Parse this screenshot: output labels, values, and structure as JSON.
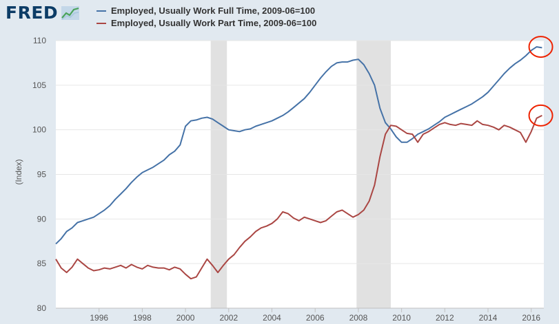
{
  "header": {
    "logo_text": "FRED",
    "logo_icon": "line-chart-icon"
  },
  "colors": {
    "background": "#e1e9f0",
    "plot_background": "#ffffff",
    "recession_shading": "#e1e1e1",
    "full_time_series": "#4572a7",
    "part_time_series": "#aa4643",
    "highlight_circle": "#ee2200"
  },
  "chart_data": {
    "type": "line",
    "title": "",
    "xlabel": "",
    "ylabel": "(Index)",
    "xlim": [
      1994.0,
      2016.583
    ],
    "ylim": [
      80,
      110
    ],
    "x_ticks": [
      "1996",
      "1998",
      "2000",
      "2002",
      "2004",
      "2006",
      "2008",
      "2010",
      "2012",
      "2014",
      "2016"
    ],
    "y_ticks": [
      "80",
      "85",
      "90",
      "95",
      "100",
      "105",
      "110"
    ],
    "grid": "horizontal",
    "legend_placement": "top",
    "recessions": [
      [
        2001.167,
        2001.917
      ],
      [
        2007.917,
        2009.5
      ]
    ],
    "annotations": [
      {
        "type": "circle",
        "x": 2016.25,
        "y": 109.3
      },
      {
        "type": "circle",
        "x": 2016.25,
        "y": 101.6
      }
    ],
    "series": [
      {
        "name": "Employed, Usually Work Full Time, 2009-06=100",
        "points": [
          [
            1994.0,
            87.2
          ],
          [
            1994.25,
            87.8
          ],
          [
            1994.5,
            88.6
          ],
          [
            1994.75,
            89.0
          ],
          [
            1995.0,
            89.6
          ],
          [
            1995.25,
            89.8
          ],
          [
            1995.5,
            90.0
          ],
          [
            1995.75,
            90.2
          ],
          [
            1996.0,
            90.6
          ],
          [
            1996.25,
            91.0
          ],
          [
            1996.5,
            91.5
          ],
          [
            1996.75,
            92.2
          ],
          [
            1997.0,
            92.8
          ],
          [
            1997.25,
            93.4
          ],
          [
            1997.5,
            94.1
          ],
          [
            1997.75,
            94.7
          ],
          [
            1998.0,
            95.2
          ],
          [
            1998.25,
            95.5
          ],
          [
            1998.5,
            95.8
          ],
          [
            1998.75,
            96.2
          ],
          [
            1999.0,
            96.6
          ],
          [
            1999.25,
            97.2
          ],
          [
            1999.5,
            97.6
          ],
          [
            1999.75,
            98.3
          ],
          [
            2000.0,
            100.4
          ],
          [
            2000.25,
            101.0
          ],
          [
            2000.5,
            101.1
          ],
          [
            2000.75,
            101.3
          ],
          [
            2001.0,
            101.4
          ],
          [
            2001.25,
            101.2
          ],
          [
            2001.5,
            100.8
          ],
          [
            2001.75,
            100.4
          ],
          [
            2002.0,
            100.0
          ],
          [
            2002.25,
            99.9
          ],
          [
            2002.5,
            99.8
          ],
          [
            2002.75,
            100.0
          ],
          [
            2003.0,
            100.1
          ],
          [
            2003.25,
            100.4
          ],
          [
            2003.5,
            100.6
          ],
          [
            2003.75,
            100.8
          ],
          [
            2004.0,
            101.0
          ],
          [
            2004.25,
            101.3
          ],
          [
            2004.5,
            101.6
          ],
          [
            2004.75,
            102.0
          ],
          [
            2005.0,
            102.5
          ],
          [
            2005.25,
            103.0
          ],
          [
            2005.5,
            103.5
          ],
          [
            2005.75,
            104.2
          ],
          [
            2006.0,
            105.0
          ],
          [
            2006.25,
            105.8
          ],
          [
            2006.5,
            106.5
          ],
          [
            2006.75,
            107.1
          ],
          [
            2007.0,
            107.5
          ],
          [
            2007.25,
            107.6
          ],
          [
            2007.5,
            107.6
          ],
          [
            2007.75,
            107.8
          ],
          [
            2008.0,
            107.9
          ],
          [
            2008.25,
            107.3
          ],
          [
            2008.5,
            106.3
          ],
          [
            2008.75,
            105.0
          ],
          [
            2009.0,
            102.4
          ],
          [
            2009.25,
            100.8
          ],
          [
            2009.5,
            100.1
          ],
          [
            2009.75,
            99.2
          ],
          [
            2010.0,
            98.6
          ],
          [
            2010.25,
            98.6
          ],
          [
            2010.5,
            99.0
          ],
          [
            2010.75,
            99.5
          ],
          [
            2011.0,
            99.8
          ],
          [
            2011.25,
            100.1
          ],
          [
            2011.5,
            100.5
          ],
          [
            2011.75,
            100.9
          ],
          [
            2012.0,
            101.4
          ],
          [
            2012.25,
            101.7
          ],
          [
            2012.5,
            102.0
          ],
          [
            2012.75,
            102.3
          ],
          [
            2013.0,
            102.6
          ],
          [
            2013.25,
            102.9
          ],
          [
            2013.5,
            103.3
          ],
          [
            2013.75,
            103.7
          ],
          [
            2014.0,
            104.2
          ],
          [
            2014.25,
            104.9
          ],
          [
            2014.5,
            105.6
          ],
          [
            2014.75,
            106.3
          ],
          [
            2015.0,
            106.9
          ],
          [
            2015.25,
            107.4
          ],
          [
            2015.5,
            107.8
          ],
          [
            2015.75,
            108.3
          ],
          [
            2016.0,
            108.9
          ],
          [
            2016.25,
            109.3
          ],
          [
            2016.5,
            109.2
          ]
        ]
      },
      {
        "name": "Employed, Usually Work Part Time, 2009-06=100",
        "points": [
          [
            1994.0,
            85.5
          ],
          [
            1994.25,
            84.5
          ],
          [
            1994.5,
            84.0
          ],
          [
            1994.75,
            84.6
          ],
          [
            1995.0,
            85.5
          ],
          [
            1995.25,
            85.0
          ],
          [
            1995.5,
            84.5
          ],
          [
            1995.75,
            84.2
          ],
          [
            1996.0,
            84.3
          ],
          [
            1996.25,
            84.5
          ],
          [
            1996.5,
            84.4
          ],
          [
            1996.75,
            84.6
          ],
          [
            1997.0,
            84.8
          ],
          [
            1997.25,
            84.5
          ],
          [
            1997.5,
            84.9
          ],
          [
            1997.75,
            84.6
          ],
          [
            1998.0,
            84.4
          ],
          [
            1998.25,
            84.8
          ],
          [
            1998.5,
            84.6
          ],
          [
            1998.75,
            84.5
          ],
          [
            1999.0,
            84.5
          ],
          [
            1999.25,
            84.3
          ],
          [
            1999.5,
            84.6
          ],
          [
            1999.75,
            84.4
          ],
          [
            2000.0,
            83.8
          ],
          [
            2000.25,
            83.3
          ],
          [
            2000.5,
            83.5
          ],
          [
            2000.75,
            84.5
          ],
          [
            2001.0,
            85.5
          ],
          [
            2001.25,
            84.8
          ],
          [
            2001.5,
            84.0
          ],
          [
            2001.75,
            84.8
          ],
          [
            2002.0,
            85.5
          ],
          [
            2002.25,
            86.0
          ],
          [
            2002.5,
            86.8
          ],
          [
            2002.75,
            87.5
          ],
          [
            2003.0,
            88.0
          ],
          [
            2003.25,
            88.6
          ],
          [
            2003.5,
            89.0
          ],
          [
            2003.75,
            89.2
          ],
          [
            2004.0,
            89.5
          ],
          [
            2004.25,
            90.0
          ],
          [
            2004.5,
            90.8
          ],
          [
            2004.75,
            90.6
          ],
          [
            2005.0,
            90.1
          ],
          [
            2005.25,
            89.8
          ],
          [
            2005.5,
            90.2
          ],
          [
            2005.75,
            90.0
          ],
          [
            2006.0,
            89.8
          ],
          [
            2006.25,
            89.6
          ],
          [
            2006.5,
            89.8
          ],
          [
            2006.75,
            90.3
          ],
          [
            2007.0,
            90.8
          ],
          [
            2007.25,
            91.0
          ],
          [
            2007.5,
            90.6
          ],
          [
            2007.75,
            90.2
          ],
          [
            2008.0,
            90.5
          ],
          [
            2008.25,
            91.0
          ],
          [
            2008.5,
            92.0
          ],
          [
            2008.75,
            93.8
          ],
          [
            2009.0,
            97.0
          ],
          [
            2009.25,
            99.5
          ],
          [
            2009.5,
            100.5
          ],
          [
            2009.75,
            100.4
          ],
          [
            2010.0,
            100.0
          ],
          [
            2010.25,
            99.6
          ],
          [
            2010.5,
            99.5
          ],
          [
            2010.75,
            98.6
          ],
          [
            2011.0,
            99.5
          ],
          [
            2011.25,
            99.8
          ],
          [
            2011.5,
            100.2
          ],
          [
            2011.75,
            100.6
          ],
          [
            2012.0,
            100.8
          ],
          [
            2012.25,
            100.6
          ],
          [
            2012.5,
            100.5
          ],
          [
            2012.75,
            100.7
          ],
          [
            2013.0,
            100.6
          ],
          [
            2013.25,
            100.5
          ],
          [
            2013.5,
            101.0
          ],
          [
            2013.75,
            100.6
          ],
          [
            2014.0,
            100.5
          ],
          [
            2014.25,
            100.3
          ],
          [
            2014.5,
            100.0
          ],
          [
            2014.75,
            100.5
          ],
          [
            2015.0,
            100.3
          ],
          [
            2015.25,
            100.0
          ],
          [
            2015.5,
            99.7
          ],
          [
            2015.75,
            98.6
          ],
          [
            2016.0,
            99.8
          ],
          [
            2016.25,
            101.3
          ],
          [
            2016.5,
            101.6
          ]
        ]
      }
    ]
  }
}
